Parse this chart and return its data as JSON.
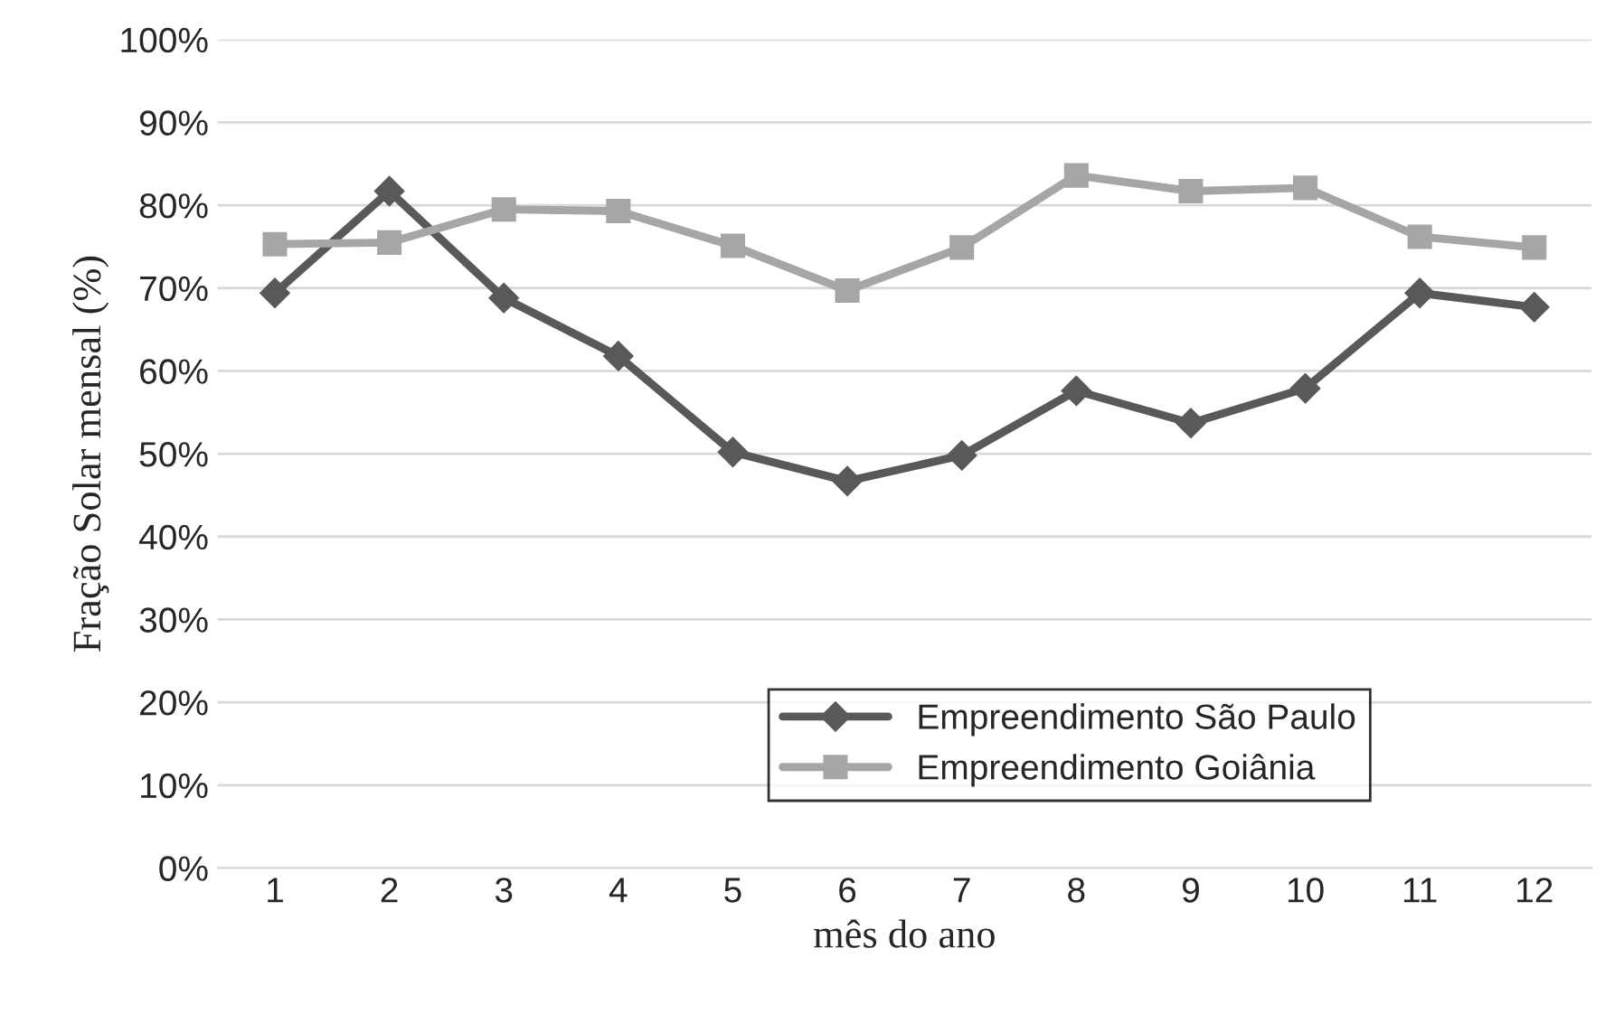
{
  "chart_data": {
    "type": "line",
    "xlabel": "mês do ano",
    "ylabel": "Fração Solar mensal (%)",
    "categories": [
      "1",
      "2",
      "3",
      "4",
      "5",
      "6",
      "7",
      "8",
      "9",
      "10",
      "11",
      "12"
    ],
    "series": [
      {
        "name": "Empreendimento São Paulo",
        "color": "#595959",
        "marker": "diamond",
        "values": [
          69.4,
          81.7,
          68.8,
          61.8,
          50.2,
          46.7,
          49.8,
          57.6,
          53.7,
          57.9,
          69.4,
          67.7
        ]
      },
      {
        "name": "Empreendimento Goiânia",
        "color": "#a6a6a6",
        "marker": "square",
        "values": [
          75.3,
          75.5,
          79.5,
          79.3,
          75.1,
          69.7,
          74.9,
          83.6,
          81.7,
          82.1,
          76.2,
          74.9
        ]
      }
    ],
    "ylim": [
      0,
      100
    ],
    "yticks": [
      {
        "value": 0,
        "label": "0%"
      },
      {
        "value": 10,
        "label": "10%"
      },
      {
        "value": 20,
        "label": "20%"
      },
      {
        "value": 30,
        "label": "30%"
      },
      {
        "value": 40,
        "label": "40%"
      },
      {
        "value": 50,
        "label": "50%"
      },
      {
        "value": 60,
        "label": "60%"
      },
      {
        "value": 70,
        "label": "70%"
      },
      {
        "value": 80,
        "label": "80%"
      },
      {
        "value": 90,
        "label": "90%"
      },
      {
        "value": 100,
        "label": "100%"
      }
    ],
    "grid": "y",
    "legend": "bottom right",
    "line_style": "solid"
  }
}
